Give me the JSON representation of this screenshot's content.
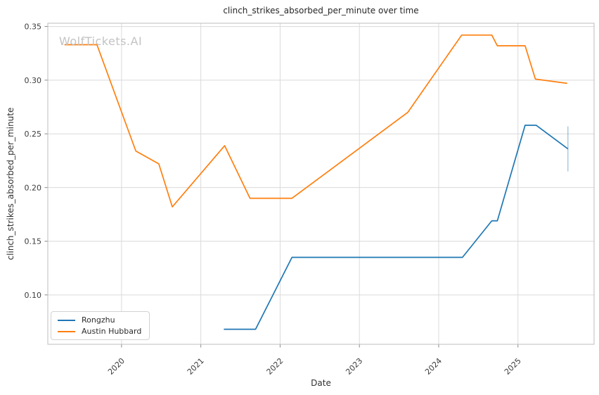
{
  "watermark": {
    "text": "WolfTickets.AI",
    "color": "#c3c3c3"
  },
  "chart_data": {
    "type": "line",
    "title": "clinch_strikes_absorbed_per_minute over time",
    "xlabel": "Date",
    "ylabel": "clinch_strikes_absorbed_per_minute",
    "xlim": [
      2019.07,
      2025.96
    ],
    "ylim": [
      0.054,
      0.353
    ],
    "xticks": [
      2020,
      2021,
      2022,
      2023,
      2024,
      2025
    ],
    "yticks": [
      0.1,
      0.15,
      0.2,
      0.25,
      0.3,
      0.35
    ],
    "grid": true,
    "legend_position": "lower left",
    "series": [
      {
        "name": "Rongzhu",
        "color": "#1f77b4",
        "x": [
          2021.29,
          2021.69,
          2022.15,
          2024.3,
          2024.67,
          2024.74,
          2025.09,
          2025.23,
          2025.63
        ],
        "y": [
          0.068,
          0.068,
          0.135,
          0.135,
          0.169,
          0.169,
          0.258,
          0.258,
          0.236
        ],
        "errorbar": {
          "x": 2025.63,
          "y": 0.236,
          "y_min": 0.215,
          "y_max": 0.257,
          "color": "rgba(31,119,180,0.38)"
        }
      },
      {
        "name": "Austin Hubbard",
        "color": "#ff7f0e",
        "x": [
          2019.28,
          2019.69,
          2020.18,
          2020.47,
          2020.64,
          2021.3,
          2021.62,
          2022.15,
          2023.61,
          2024.29,
          2024.67,
          2024.74,
          2025.09,
          2025.22,
          2025.62
        ],
        "y": [
          0.333,
          0.333,
          0.234,
          0.222,
          0.182,
          0.239,
          0.19,
          0.19,
          0.27,
          0.342,
          0.342,
          0.332,
          0.332,
          0.301,
          0.297
        ],
        "errorbar": null
      }
    ]
  }
}
